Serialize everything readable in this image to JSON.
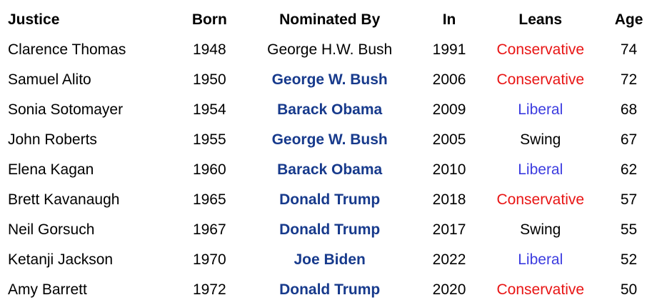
{
  "headers": [
    "Justice",
    "Born",
    "Nominated By",
    "In",
    "Leans",
    "Age"
  ],
  "colors": {
    "nominator_bold": "#173a8c",
    "Conservative": "#e81414",
    "Liberal": "#3c3ce0",
    "Swing": "#000000"
  },
  "rows": [
    {
      "justice": "Clarence Thomas",
      "born": "1948",
      "nominated_by": "George H.W. Bush",
      "nominator_bold": false,
      "in": "1991",
      "leans": "Conservative",
      "age": "74"
    },
    {
      "justice": "Samuel Alito",
      "born": "1950",
      "nominated_by": "George W. Bush",
      "nominator_bold": true,
      "in": "2006",
      "leans": "Conservative",
      "age": "72"
    },
    {
      "justice": "Sonia Sotomayer",
      "born": "1954",
      "nominated_by": "Barack Obama",
      "nominator_bold": true,
      "in": "2009",
      "leans": "Liberal",
      "age": "68"
    },
    {
      "justice": "John Roberts",
      "born": "1955",
      "nominated_by": "George W. Bush",
      "nominator_bold": true,
      "in": "2005",
      "leans": "Swing",
      "age": "67"
    },
    {
      "justice": "Elena Kagan",
      "born": "1960",
      "nominated_by": "Barack Obama",
      "nominator_bold": true,
      "in": "2010",
      "leans": "Liberal",
      "age": "62"
    },
    {
      "justice": "Brett Kavanaugh",
      "born": "1965",
      "nominated_by": "Donald Trump",
      "nominator_bold": true,
      "in": "2018",
      "leans": "Conservative",
      "age": "57"
    },
    {
      "justice": "Neil Gorsuch",
      "born": "1967",
      "nominated_by": "Donald Trump",
      "nominator_bold": true,
      "in": "2017",
      "leans": "Swing",
      "age": "55"
    },
    {
      "justice": "Ketanji Jackson",
      "born": "1970",
      "nominated_by": "Joe Biden",
      "nominator_bold": true,
      "in": "2022",
      "leans": "Liberal",
      "age": "52"
    },
    {
      "justice": "Amy Barrett",
      "born": "1972",
      "nominated_by": "Donald Trump",
      "nominator_bold": true,
      "in": "2020",
      "leans": "Conservative",
      "age": "50"
    }
  ]
}
